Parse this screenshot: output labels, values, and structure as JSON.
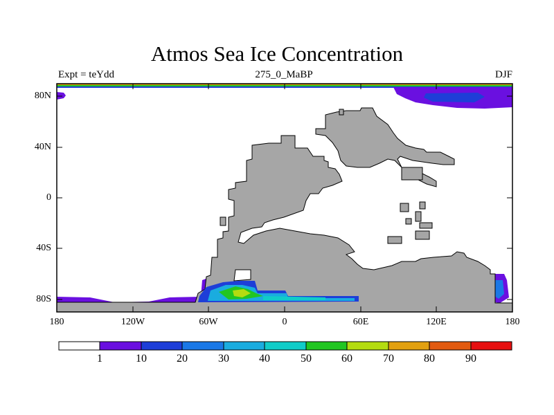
{
  "title": "Atmos Sea Ice Concentration",
  "expt_label": "Expt = teYdd",
  "period_label": "275_0_MaBP",
  "season_label": "DJF",
  "lat_ticks": [
    "80N",
    "40N",
    "0",
    "40S",
    "80S"
  ],
  "lon_ticks": [
    "180",
    "120W",
    "60W",
    "0",
    "60E",
    "120E",
    "180"
  ],
  "colorbar": {
    "labels": [
      "1",
      "10",
      "20",
      "30",
      "40",
      "50",
      "60",
      "70",
      "80",
      "90"
    ],
    "colors": [
      "#ffffff",
      "#6a10e0",
      "#1e3ed8",
      "#1a78e6",
      "#1aacdf",
      "#10ccc8",
      "#22c622",
      "#b4dc10",
      "#e2a010",
      "#e25a10",
      "#e61010"
    ]
  },
  "colors": {
    "land": "#a6a6a6",
    "outline": "#000000"
  }
}
